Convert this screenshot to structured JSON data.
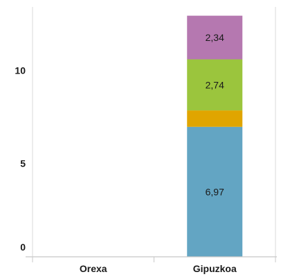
{
  "chart_data": {
    "type": "bar",
    "stacked": true,
    "categories": [
      "Orexa",
      "Gipuzkoa"
    ],
    "series": [
      {
        "values": [
          0,
          6.97
        ],
        "color": "#63a5c3",
        "labels": [
          "",
          "6,97"
        ]
      },
      {
        "values": [
          0,
          0.88
        ],
        "color": "#e0a500",
        "labels": [
          "",
          ""
        ]
      },
      {
        "values": [
          0,
          2.74
        ],
        "color": "#9bc53d",
        "labels": [
          "",
          "2,74"
        ]
      },
      {
        "values": [
          0,
          2.34
        ],
        "color": "#b578b0",
        "labels": [
          "",
          "2,34"
        ]
      }
    ],
    "yticks": [
      0,
      5,
      10
    ],
    "ytick_labels": [
      "0",
      "5",
      "10"
    ],
    "ylim": [
      0,
      12.9
    ],
    "grid": false,
    "legend": "none",
    "xlabel": "",
    "ylabel": "",
    "title": ""
  }
}
